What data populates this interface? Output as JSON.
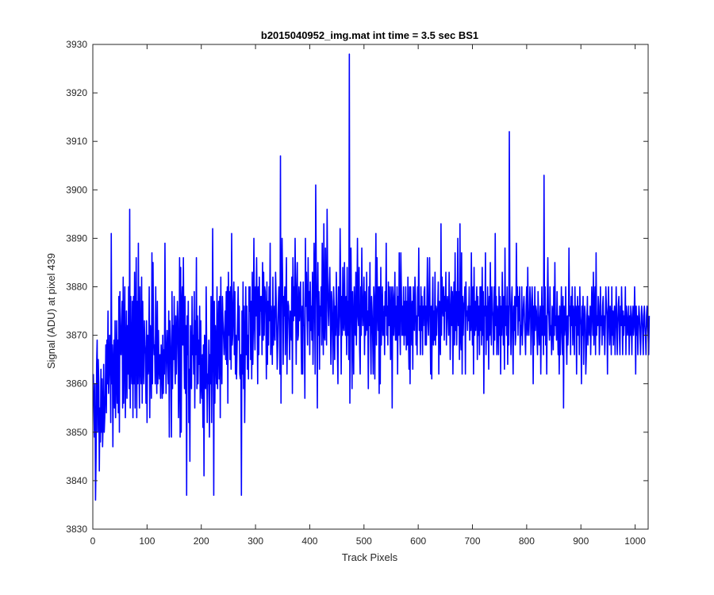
{
  "chart_data": {
    "type": "line",
    "title": "b2015040952_img.mat int time = 3.5 sec   BS1",
    "xlabel": "Track Pixels",
    "ylabel": "Signal (ADU) at pixel 439",
    "xlim": [
      0,
      1024
    ],
    "ylim": [
      3830,
      3930
    ],
    "xticks": [
      "0",
      "100",
      "200",
      "300",
      "400",
      "500",
      "600",
      "700",
      "800",
      "900",
      "1000"
    ],
    "yticks": [
      "3830",
      "3840",
      "3850",
      "3860",
      "3870",
      "3880",
      "3890",
      "3900",
      "3910",
      "3920",
      "3930"
    ],
    "grid": false,
    "legend": "none",
    "series": [
      {
        "color": "#0000ff",
        "x_start": 1,
        "x_step": 1,
        "values": [
          3862,
          3855,
          3849,
          3860,
          3836,
          3845,
          3864,
          3869,
          3850,
          3865,
          3860,
          3842,
          3855,
          3848,
          3863,
          3850,
          3861,
          3847,
          3852,
          3864,
          3850,
          3853,
          3858,
          3868,
          3854,
          3869,
          3860,
          3875,
          3858,
          3862,
          3870,
          3866,
          3852,
          3891,
          3860,
          3868,
          3847,
          3864,
          3869,
          3855,
          3873,
          3853,
          3862,
          3873,
          3856,
          3869,
          3854,
          3878,
          3850,
          3879,
          3868,
          3866,
          3872,
          3877,
          3855,
          3882,
          3856,
          3868,
          3880,
          3853,
          3865,
          3875,
          3857,
          3872,
          3862,
          3880,
          3859,
          3896,
          3855,
          3878,
          3864,
          3860,
          3877,
          3853,
          3878,
          3860,
          3883,
          3855,
          3872,
          3886,
          3853,
          3877,
          3860,
          3889,
          3866,
          3855,
          3880,
          3864,
          3860,
          3882,
          3856,
          3877,
          3865,
          3860,
          3873,
          3868,
          3866,
          3856,
          3873,
          3852,
          3870,
          3862,
          3864,
          3880,
          3853,
          3872,
          3866,
          3857,
          3887,
          3860,
          3885,
          3870,
          3866,
          3868,
          3860,
          3880,
          3865,
          3858,
          3877,
          3860,
          3871,
          3863,
          3861,
          3866,
          3857,
          3868,
          3865,
          3857,
          3870,
          3858,
          3867,
          3862,
          3889,
          3870,
          3858,
          3866,
          3871,
          3865,
          3860,
          3875,
          3849,
          3873,
          3869,
          3864,
          3849,
          3879,
          3859,
          3872,
          3865,
          3878,
          3866,
          3860,
          3874,
          3862,
          3869,
          3877,
          3873,
          3853,
          3861,
          3886,
          3849,
          3884,
          3850,
          3876,
          3880,
          3868,
          3886,
          3869,
          3859,
          3878,
          3858,
          3872,
          3837,
          3874,
          3866,
          3877,
          3852,
          3863,
          3844,
          3872,
          3866,
          3859,
          3878,
          3866,
          3870,
          3862,
          3879,
          3855,
          3873,
          3866,
          3886,
          3859,
          3874,
          3860,
          3869,
          3864,
          3876,
          3856,
          3873,
          3860,
          3857,
          3866,
          3851,
          3868,
          3841,
          3870,
          3866,
          3859,
          3880,
          3866,
          3852,
          3862,
          3860,
          3869,
          3849,
          3866,
          3860,
          3878,
          3852,
          3864,
          3892,
          3870,
          3837,
          3877,
          3856,
          3872,
          3866,
          3860,
          3880,
          3859,
          3869,
          3877,
          3861,
          3878,
          3853,
          3882,
          3866,
          3860,
          3878,
          3873,
          3870,
          3866,
          3870,
          3875,
          3865,
          3879,
          3864,
          3880,
          3856,
          3883,
          3870,
          3879,
          3865,
          3880,
          3863,
          3891,
          3868,
          3870,
          3877,
          3881,
          3866,
          3879,
          3862,
          3870,
          3861,
          3867,
          3874,
          3880,
          3869,
          3876,
          3862,
          3861,
          3866,
          3837,
          3875,
          3862,
          3881,
          3859,
          3876,
          3852,
          3866,
          3880,
          3866,
          3876,
          3863,
          3870,
          3861,
          3880,
          3875,
          3880,
          3865,
          3877,
          3861,
          3883,
          3864,
          3872,
          3890,
          3873,
          3867,
          3880,
          3874,
          3886,
          3875,
          3860,
          3880,
          3866,
          3882,
          3870,
          3878,
          3875,
          3878,
          3866,
          3885,
          3869,
          3883,
          3870,
          3880,
          3879,
          3874,
          3861,
          3881,
          3864,
          3877,
          3868,
          3880,
          3873,
          3889,
          3866,
          3876,
          3872,
          3864,
          3882,
          3868,
          3872,
          3876,
          3869,
          3883,
          3878,
          3872,
          3863,
          3868,
          3876,
          3880,
          3875,
          3862,
          3907,
          3856,
          3879,
          3890,
          3881,
          3864,
          3878,
          3874,
          3880,
          3866,
          3877,
          3886,
          3862,
          3873,
          3877,
          3876,
          3870,
          3865,
          3875,
          3873,
          3869,
          3882,
          3858,
          3886,
          3873,
          3880,
          3874,
          3890,
          3878,
          3864,
          3879,
          3885,
          3869,
          3870,
          3880,
          3873,
          3876,
          3881,
          3870,
          3862,
          3876,
          3862,
          3881,
          3872,
          3872,
          3857,
          3890,
          3876,
          3883,
          3874,
          3868,
          3886,
          3873,
          3879,
          3866,
          3881,
          3871,
          3876,
          3869,
          3883,
          3864,
          3874,
          3889,
          3878,
          3862,
          3901,
          3884,
          3876,
          3855,
          3885,
          3870,
          3879,
          3863,
          3876,
          3874,
          3880,
          3868,
          3889,
          3876,
          3866,
          3893,
          3870,
          3869,
          3888,
          3875,
          3868,
          3896,
          3882,
          3875,
          3872,
          3880,
          3884,
          3874,
          3864,
          3879,
          3877,
          3870,
          3862,
          3880,
          3876,
          3865,
          3876,
          3870,
          3883,
          3876,
          3867,
          3860,
          3880,
          3870,
          3874,
          3892,
          3880,
          3862,
          3878,
          3870,
          3884,
          3872,
          3871,
          3885,
          3874,
          3870,
          3878,
          3866,
          3884,
          3870,
          3877,
          3865,
          3928,
          3856,
          3877,
          3888,
          3875,
          3859,
          3879,
          3872,
          3862,
          3880,
          3873,
          3870,
          3883,
          3868,
          3876,
          3890,
          3874,
          3872,
          3884,
          3867,
          3862,
          3880,
          3870,
          3888,
          3876,
          3872,
          3877,
          3882,
          3866,
          3879,
          3870,
          3872,
          3883,
          3871,
          3875,
          3859,
          3880,
          3872,
          3885,
          3870,
          3862,
          3878,
          3875,
          3870,
          3862,
          3880,
          3877,
          3861,
          3878,
          3891,
          3868,
          3886,
          3876,
          3871,
          3880,
          3858,
          3880,
          3860,
          3884,
          3868,
          3874,
          3880,
          3870,
          3870,
          3876,
          3866,
          3879,
          3874,
          3889,
          3870,
          3876,
          3868,
          3881,
          3872,
          3880,
          3874,
          3865,
          3880,
          3876,
          3855,
          3880,
          3878,
          3870,
          3874,
          3883,
          3869,
          3876,
          3869,
          3880,
          3862,
          3878,
          3870,
          3887,
          3873,
          3866,
          3887,
          3879,
          3870,
          3876,
          3870,
          3880,
          3868,
          3877,
          3870,
          3880,
          3867,
          3877,
          3868,
          3882,
          3870,
          3863,
          3880,
          3860,
          3880,
          3874,
          3868,
          3877,
          3863,
          3880,
          3872,
          3871,
          3882,
          3878,
          3868,
          3874,
          3866,
          3880,
          3874,
          3888,
          3871,
          3876,
          3866,
          3880,
          3871,
          3878,
          3866,
          3876,
          3872,
          3879,
          3880,
          3868,
          3876,
          3868,
          3876,
          3886,
          3873,
          3870,
          3878,
          3886,
          3872,
          3862,
          3876,
          3861,
          3875,
          3882,
          3868,
          3875,
          3869,
          3883,
          3868,
          3876,
          3870,
          3875,
          3876,
          3881,
          3862,
          3877,
          3871,
          3866,
          3893,
          3870,
          3882,
          3876,
          3874,
          3880,
          3869,
          3878,
          3875,
          3883,
          3868,
          3875,
          3878,
          3874,
          3870,
          3883,
          3876,
          3865,
          3875,
          3880,
          3872,
          3879,
          3862,
          3876,
          3881,
          3868,
          3887,
          3871,
          3879,
          3868,
          3876,
          3890,
          3872,
          3879,
          3865,
          3893,
          3870,
          3867,
          3887,
          3862,
          3878,
          3870,
          3876,
          3877,
          3880,
          3862,
          3881,
          3874,
          3875,
          3871,
          3876,
          3873,
          3880,
          3869,
          3876,
          3871,
          3887,
          3874,
          3868,
          3880,
          3862,
          3884,
          3870,
          3877,
          3871,
          3876,
          3880,
          3865,
          3878,
          3870,
          3876,
          3866,
          3880,
          3871,
          3880,
          3868,
          3884,
          3870,
          3879,
          3858,
          3876,
          3874,
          3887,
          3866,
          3876,
          3869,
          3880,
          3874,
          3863,
          3878,
          3870,
          3885,
          3872,
          3868,
          3880,
          3875,
          3874,
          3866,
          3880,
          3869,
          3891,
          3872,
          3878,
          3866,
          3876,
          3874,
          3866,
          3880,
          3870,
          3878,
          3862,
          3876,
          3870,
          3883,
          3875,
          3868,
          3878,
          3863,
          3888,
          3872,
          3876,
          3870,
          3880,
          3864,
          3876,
          3868,
          3912,
          3880,
          3874,
          3866,
          3876,
          3880,
          3870,
          3862,
          3876,
          3871,
          3878,
          3868,
          3870,
          3889,
          3876,
          3880,
          3870,
          3878,
          3873,
          3880,
          3866,
          3872,
          3870,
          3880,
          3868,
          3873,
          3876,
          3878,
          3873,
          3870,
          3866,
          3876,
          3880,
          3870,
          3884,
          3872,
          3870,
          3874,
          3880,
          3877,
          3866,
          3872,
          3880,
          3876,
          3860,
          3876,
          3868,
          3880,
          3871,
          3876,
          3875,
          3870,
          3866,
          3879,
          3874,
          3868,
          3872,
          3876,
          3862,
          3872,
          3880,
          3870,
          3876,
          3866,
          3903,
          3870,
          3880,
          3868,
          3874,
          3862,
          3876,
          3886,
          3875,
          3874,
          3869,
          3880,
          3870,
          3872,
          3866,
          3876,
          3874,
          3867,
          3880,
          3870,
          3885,
          3872,
          3874,
          3869,
          3879,
          3872,
          3866,
          3874,
          3862,
          3876,
          3866,
          3871,
          3880,
          3872,
          3866,
          3878,
          3855,
          3876,
          3870,
          3872,
          3880,
          3870,
          3864,
          3874,
          3868,
          3872,
          3888,
          3874,
          3876,
          3866,
          3878,
          3872,
          3880,
          3868,
          3876,
          3874,
          3866,
          3880,
          3872,
          3876,
          3862,
          3874,
          3878,
          3870,
          3876,
          3866,
          3880,
          3874,
          3872,
          3860,
          3876,
          3870,
          3878,
          3864,
          3872,
          3876,
          3874,
          3862,
          3866,
          3873,
          3878,
          3868,
          3874,
          3872,
          3870,
          3876,
          3866,
          3872,
          3880,
          3875,
          3870,
          3883,
          3868,
          3874,
          3880,
          3866,
          3887,
          3870,
          3874,
          3872,
          3878,
          3876,
          3866,
          3870,
          3880,
          3872,
          3874,
          3868,
          3876,
          3878,
          3870,
          3874,
          3866,
          3872,
          3880,
          3876,
          3874,
          3862,
          3875,
          3880,
          3872,
          3868,
          3876,
          3874,
          3866,
          3880,
          3870,
          3875,
          3868,
          3874,
          3876,
          3866,
          3872,
          3880,
          3874,
          3866,
          3872,
          3876,
          3878,
          3870,
          3866,
          3876,
          3872,
          3880,
          3874,
          3866,
          3875,
          3870,
          3874,
          3872,
          3880,
          3866,
          3876,
          3874,
          3870,
          3872,
          3876,
          3866,
          3874,
          3870,
          3876,
          3872,
          3866,
          3874,
          3876,
          3870,
          3872,
          3880,
          3874,
          3862,
          3876,
          3870,
          3874,
          3866,
          3872,
          3876,
          3874,
          3870,
          3866,
          3872,
          3876,
          3874,
          3870,
          3866,
          3874,
          3876,
          3872,
          3870,
          3866,
          3874,
          3876,
          3872,
          3870,
          3866,
          3874
        ]
      }
    ]
  }
}
